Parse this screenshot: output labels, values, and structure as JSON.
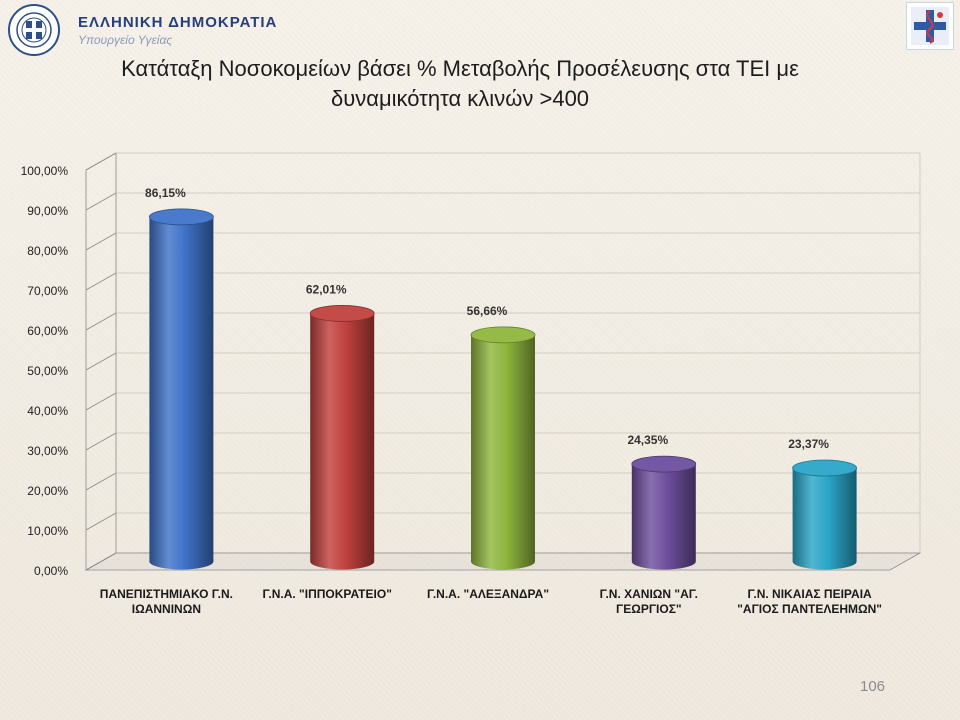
{
  "header": {
    "title": "ΕΛΛΗΝΙΚΗ ΔΗΜΟΚΡΑΤΙΑ",
    "subtitle": "Υπουργείο Υγείας",
    "emblem_icon": "greek-emblem-icon",
    "corner_icon": "medical-logo-icon"
  },
  "colors": {
    "blue": "#3f73c8",
    "red": "#c0413e",
    "green": "#8fb63e",
    "purple": "#6e4f9e",
    "cyan": "#2aa6c8"
  },
  "chart_data": {
    "type": "bar",
    "title_line1": "Κατάταξη Νοσοκομείων βάσει % Μεταβολής Προσέλευσης στα ΤΕΙ με",
    "title_line2": "δυναμικότητα κλινών >400",
    "categories": [
      [
        "ΠΑΝΕΠΙΣΤΗΜΙΑΚΟ Γ.Ν.",
        "ΙΩΑΝΝΙΝΩΝ"
      ],
      [
        "Γ.Ν.Α. \"ΙΠΠΟΚΡΑΤΕΙΟ\""
      ],
      [
        "Γ.Ν.Α. \"ΑΛΕΞΑΝΔΡΑ\""
      ],
      [
        "Γ.Ν. ΧΑΝΙΩΝ \"ΑΓ.",
        "ΓΕΩΡΓΙΟΣ\""
      ],
      [
        "Γ.Ν. ΝΙΚΑΙΑΣ ΠΕΙΡΑΙΑ",
        "\"ΑΓΙΟΣ ΠΑΝΤΕΛΕΗΜΩΝ\""
      ]
    ],
    "values": [
      86.15,
      62.01,
      56.66,
      24.35,
      23.37
    ],
    "value_labels": [
      "86,15%",
      "62,01%",
      "56,66%",
      "24,35%",
      "23,37%"
    ],
    "bar_colors": [
      "blue",
      "red",
      "green",
      "purple",
      "cyan"
    ],
    "ylim": [
      0,
      100
    ],
    "yticks": [
      0,
      10,
      20,
      30,
      40,
      50,
      60,
      70,
      80,
      90,
      100
    ],
    "ytick_labels": [
      "0,00%",
      "10,00%",
      "20,00%",
      "30,00%",
      "40,00%",
      "50,00%",
      "60,00%",
      "70,00%",
      "80,00%",
      "90,00%",
      "100,00%"
    ],
    "grid": true,
    "style": "3d-cylinder"
  },
  "page_number": "106"
}
